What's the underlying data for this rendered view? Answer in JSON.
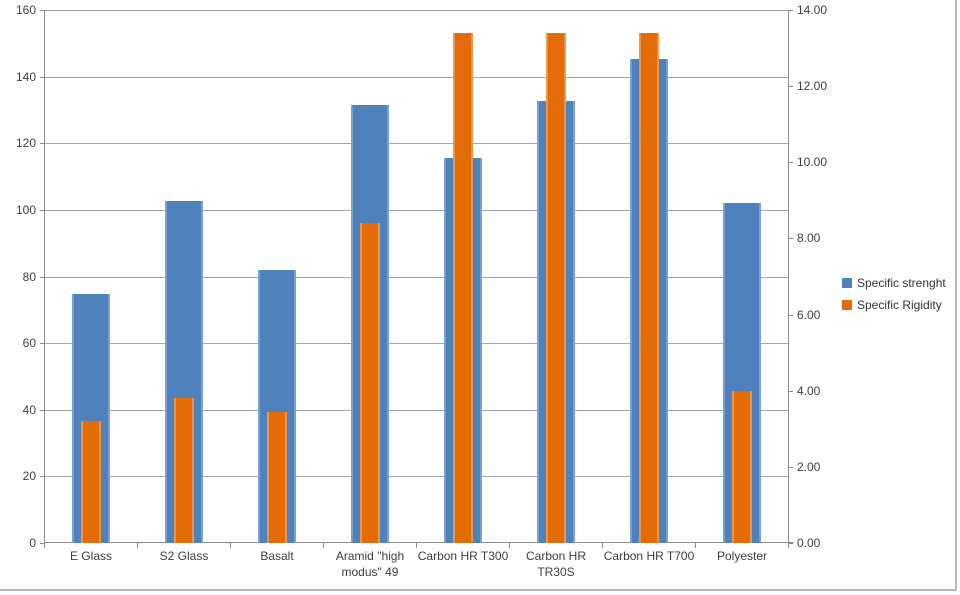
{
  "chart_data": {
    "type": "bar",
    "title": "",
    "categories": [
      "E Glass",
      "S2 Glass",
      "Basalt",
      "Aramid \"high modus\" 49",
      "Carbon HR T300",
      "Carbon HR TR30S",
      "Carbon HR T700",
      "Polyester"
    ],
    "category_label_lines": [
      [
        "E Glass"
      ],
      [
        "S2 Glass"
      ],
      [
        "Basalt"
      ],
      [
        "Aramid \"high",
        "modus\" 49"
      ],
      [
        "Carbon HR T300"
      ],
      [
        "Carbon HR",
        "TR30S"
      ],
      [
        "Carbon HR T700"
      ],
      [
        "Polyester"
      ]
    ],
    "series": [
      {
        "name": "Specific strenght",
        "axis": "left",
        "color": "#4f81bd",
        "values": [
          74.7,
          102.8,
          82.0,
          131.6,
          115.5,
          132.8,
          145.4,
          102.2
        ]
      },
      {
        "name": "Specific Rigidity",
        "axis": "right",
        "color": "#e36c09",
        "values": [
          3.2,
          3.8,
          3.45,
          8.4,
          13.4,
          13.4,
          13.4,
          4.0
        ]
      }
    ],
    "left_axis": {
      "min": 0,
      "max": 160,
      "step": 20,
      "tick_labels": [
        "0",
        "20",
        "40",
        "60",
        "80",
        "100",
        "120",
        "140",
        "160"
      ]
    },
    "right_axis": {
      "min": 0,
      "max": 14,
      "step": 2,
      "tick_labels": [
        "0.00",
        "2.00",
        "4.00",
        "6.00",
        "8.00",
        "10.00",
        "12.00",
        "14.00"
      ]
    },
    "grid": true,
    "legend_position": "right"
  },
  "legend": {
    "items": [
      {
        "label": "Specific strenght",
        "color": "#4f81bd"
      },
      {
        "label": "Specific Rigidity",
        "color": "#e36c09"
      }
    ]
  },
  "colors": {
    "series_strength": "#4f81bd",
    "series_rigidity": "#e36c09",
    "gridline": "#a6a6a6",
    "axis_line": "#8c8c8c",
    "text": "#3d3d3d",
    "background": "#ffffff",
    "frame_border": "#b4b9be"
  }
}
